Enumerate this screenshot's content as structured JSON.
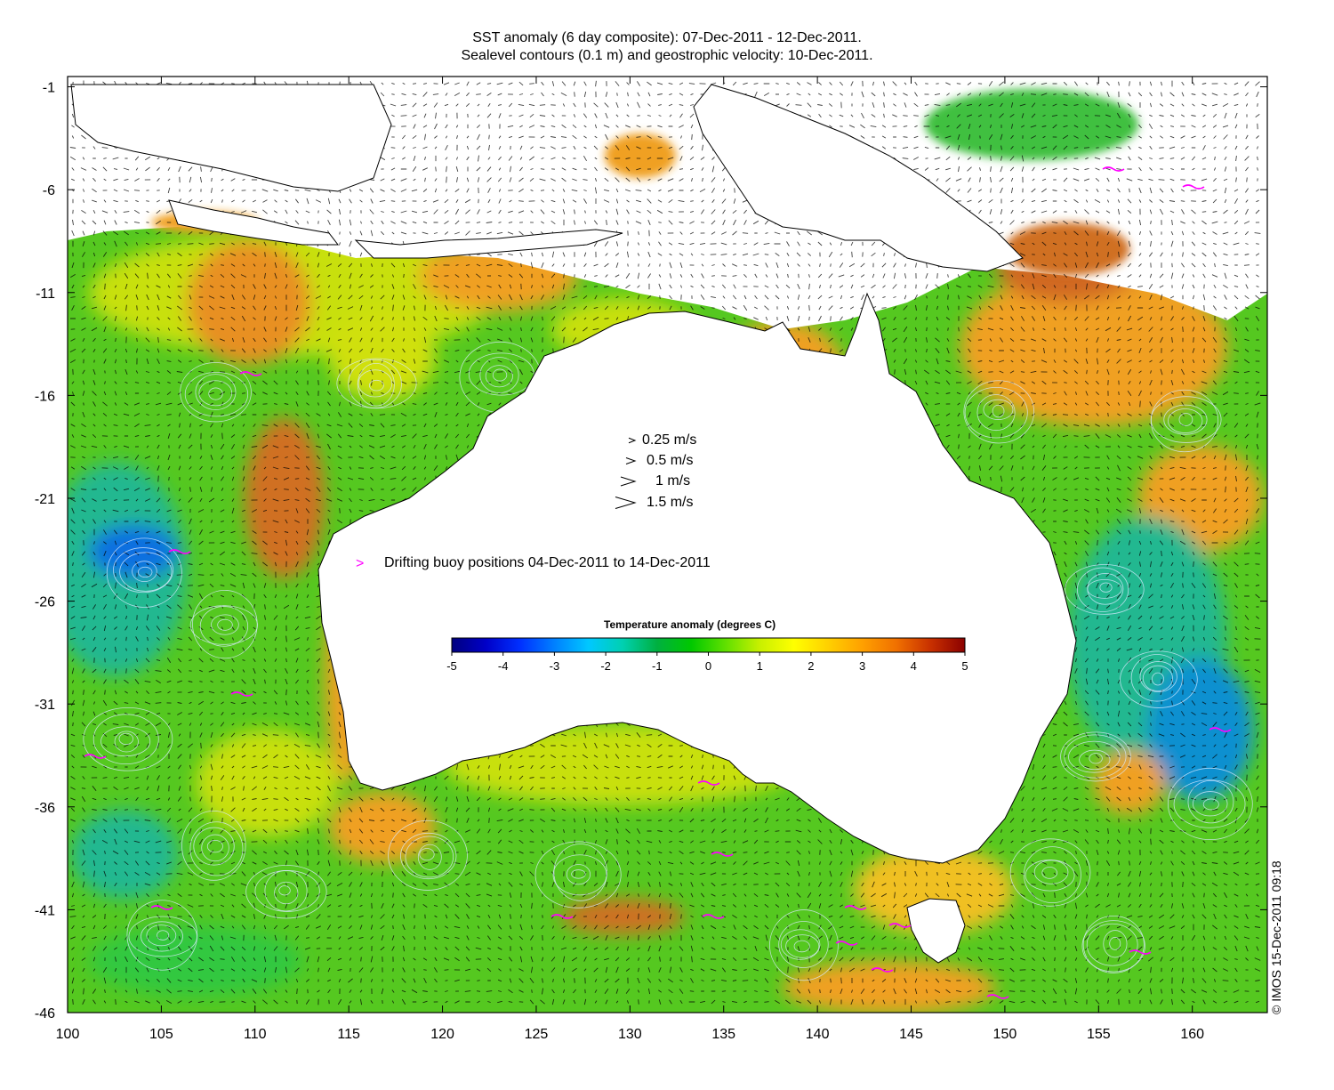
{
  "title": {
    "line1": "SST anomaly (6 day composite): 07-Dec-2011 - 12-Dec-2011.",
    "line2": "Sealevel contours (0.1 m) and geostrophic velocity: 10-Dec-2011."
  },
  "axes": {
    "x_ticks": [
      "100",
      "105",
      "110",
      "115",
      "120",
      "125",
      "130",
      "135",
      "140",
      "145",
      "150",
      "155",
      "160"
    ],
    "y_ticks": [
      "-1",
      "-6",
      "-11",
      "-16",
      "-21",
      "-26",
      "-31",
      "-36",
      "-41",
      "-46"
    ],
    "lon_range": [
      100,
      164
    ],
    "lat_range": [
      -46,
      -0.5
    ]
  },
  "velocity_scale": [
    {
      "label": "0.25 m/s",
      "speed": 0.25
    },
    {
      "label": "0.5 m/s",
      "speed": 0.5
    },
    {
      "label": "1 m/s",
      "speed": 1
    },
    {
      "label": "1.5 m/s",
      "speed": 1.5
    }
  ],
  "buoy_legend": {
    "marker": ">",
    "label": "Drifting buoy positions 04-Dec-2011 to 14-Dec-2011",
    "color": "#ff00ff"
  },
  "colorbar": {
    "title": "Temperature anomaly (degrees C)",
    "ticks": [
      "-5",
      "-4",
      "-3",
      "-2",
      "-1",
      "0",
      "1",
      "2",
      "3",
      "4",
      "5"
    ],
    "min": -5,
    "max": 5,
    "colors": [
      "#00007f",
      "#0000c8",
      "#0030ff",
      "#0080ff",
      "#00c8ff",
      "#00d0b0",
      "#00b040",
      "#00c800",
      "#60e000",
      "#c8f000",
      "#ffff00",
      "#ffd000",
      "#ffa000",
      "#f07000",
      "#c83000",
      "#8b0000"
    ]
  },
  "credit": "© IMOS 15-Dec-2011 09:18",
  "colors": {
    "land": "#ffffff",
    "coast": "#000000",
    "ocean_base": "#55c820",
    "warm": "#f2a020",
    "hot": "#c86020",
    "cool": "#20b890",
    "cold": "#1070e0",
    "buoy": "#ff00ff"
  }
}
